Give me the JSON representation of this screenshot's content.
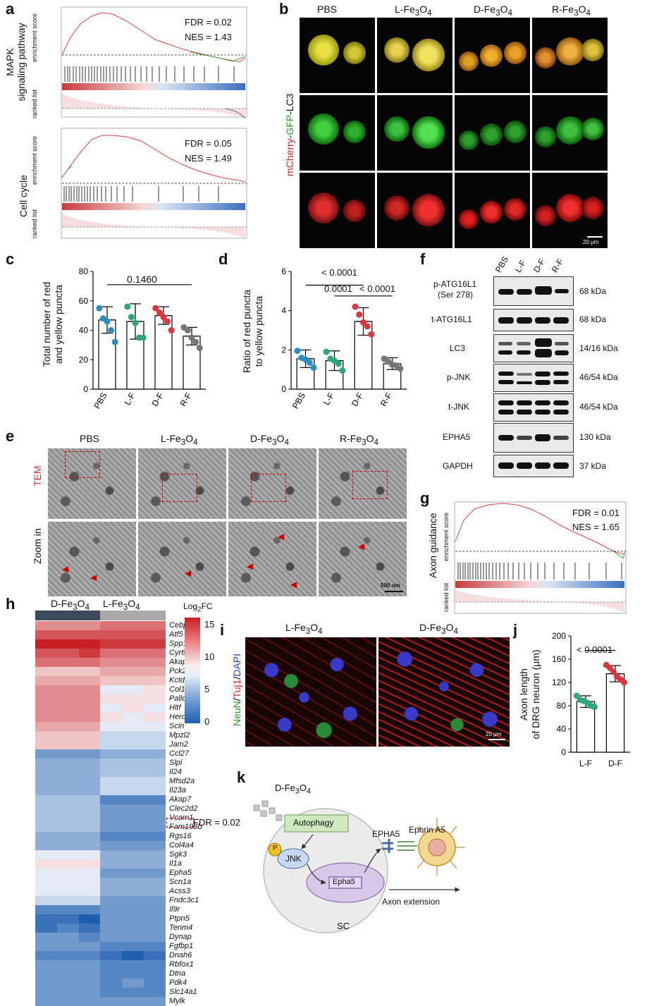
{
  "panels": {
    "a": {
      "letter": "a",
      "top": {
        "row_label": "MAPK\nsignaling pathway",
        "y_label": "enrichment score",
        "list_label": "ranked list",
        "fdr": "FDR = 0.02",
        "nes": "NES = 1.43"
      },
      "bottom": {
        "row_label": "Cell cycle",
        "y_label": "enrichment score",
        "list_label": "ranked list",
        "fdr": "FDR = 0.05",
        "nes": "NES = 1.49"
      }
    },
    "b": {
      "letter": "b",
      "columns": [
        "PBS",
        "L-Fe3O4",
        "D-Fe3O4",
        "R-Fe3O4"
      ],
      "row_label_parts": [
        "mCherry",
        "-",
        "GFP",
        "-LC3"
      ],
      "row_label_colors": [
        "#d42020",
        "#111111",
        "#22a022",
        "#111111"
      ],
      "scale_bar": "20 μm"
    },
    "c": {
      "letter": "c",
      "ylabel": "Total number of red\nand yellow puncta",
      "annotation": "0.1460",
      "chart_data": {
        "type": "bar",
        "categories": [
          "PBS",
          "L-F",
          "D-F",
          "R-F"
        ],
        "values": [
          47,
          46,
          50,
          36
        ],
        "errors": [
          9,
          12,
          6,
          6
        ],
        "points": [
          [
            55,
            48,
            46,
            40,
            32
          ],
          [
            56,
            49,
            45,
            35,
            35
          ],
          [
            55,
            52,
            49,
            46,
            40
          ],
          [
            42,
            40,
            35,
            32,
            28
          ]
        ],
        "ylim": [
          0,
          80
        ],
        "yticks": [
          0,
          20,
          40,
          60,
          80
        ],
        "colors": [
          "#2a8fbf",
          "#2fa67a",
          "#d9363e",
          "#777777"
        ]
      }
    },
    "d": {
      "letter": "d",
      "ylabel": "Ratio of red puncta\nto yellow puncta",
      "annotations": [
        "< 0.0001",
        "0.0001",
        "< 0.0001"
      ],
      "chart_data": {
        "type": "bar",
        "categories": [
          "PBS",
          "L-F",
          "D-F",
          "R-F"
        ],
        "values": [
          1.55,
          1.45,
          3.45,
          1.3
        ],
        "errors": [
          0.45,
          0.5,
          0.7,
          0.3
        ],
        "points": [
          [
            1.95,
            1.6,
            1.5,
            1.35,
            1.1
          ],
          [
            1.9,
            1.55,
            1.45,
            1.3,
            0.95
          ],
          [
            4.2,
            3.8,
            3.4,
            3.2,
            2.8
          ],
          [
            1.55,
            1.4,
            1.25,
            1.2,
            1.05
          ]
        ],
        "ylim": [
          0,
          6
        ],
        "yticks": [
          0,
          2,
          4,
          6
        ],
        "colors": [
          "#2a8fbf",
          "#2fa67a",
          "#d9363e",
          "#777777"
        ]
      }
    },
    "e": {
      "letter": "e",
      "columns": [
        "PBS",
        "L-Fe3O4",
        "D-Fe3O4",
        "R-Fe3O4"
      ],
      "rows": [
        "TEM",
        "Zoom in"
      ],
      "scale_bar": "500 nm"
    },
    "f": {
      "letter": "f",
      "lanes": [
        "PBS",
        "L-F",
        "D-F",
        "R-F"
      ],
      "blots": [
        {
          "name": "p-ATG16L1",
          "sub": "(Ser 278)",
          "kda": "68 kDa"
        },
        {
          "name": "t-ATG16L1",
          "sub": "",
          "kda": "68 kDa"
        },
        {
          "name": "LC3",
          "sub": "",
          "kda": "14/16 kDa"
        },
        {
          "name": "p-JNK",
          "sub": "",
          "kda": "46/54 kDa"
        },
        {
          "name": "t-JNK",
          "sub": "",
          "kda": "46/54 kDa"
        },
        {
          "name": "EPHA5",
          "sub": "",
          "kda": "130 kDa"
        },
        {
          "name": "GAPDH",
          "sub": "",
          "kda": "37 kDa"
        }
      ]
    },
    "g": {
      "letter": "g",
      "row_label": "Axon guidance",
      "y_label": "enrichment score",
      "list_label": "ranked list",
      "fdr": "FDR = 0.01",
      "nes": "NES = 1.65"
    },
    "h": {
      "letter": "h",
      "groups": [
        "D-Fe3O4",
        "L-Fe3O4"
      ],
      "legend_title": "Log2FC",
      "legend_ticks": [
        "15",
        "10",
        "5",
        "0"
      ],
      "fdr_label": "FDR = 0.02",
      "genes": [
        "Cebpb",
        "Atf5",
        "Spp1",
        "Cyr61",
        "Akap12",
        "Pck2",
        "Kctd15",
        "Col11a1",
        "Palld",
        "Hltf",
        "Herc3",
        "Scin",
        "Mpzl2",
        "Jam2",
        "Ccl27",
        "Slpi",
        "Il24",
        "Mfsd2a",
        "Il23a",
        "Akap7",
        "Clec2d2",
        "Vcam1",
        "Fam198b",
        "Rgs16",
        "Col4a4",
        "Sgk3",
        "Il1a",
        "Epha5",
        "Scn1a",
        "Acss3",
        "Fndc3c1",
        "Il9r",
        "Ptpn5",
        "Tenm4",
        "Dynap",
        "Fgfbp1",
        "Dnah6",
        "Rbfox1",
        "Dtna",
        "Pdk4",
        "Slc14a1",
        "Mylk"
      ],
      "levels": [
        [
          11,
          11,
          11,
          12,
          12,
          12
        ],
        [
          13,
          13,
          13,
          13,
          13,
          13
        ],
        [
          15,
          15,
          15,
          14,
          14,
          14
        ],
        [
          13,
          13,
          14,
          12,
          12,
          12
        ],
        [
          12,
          12,
          12,
          11,
          11,
          11
        ],
        [
          9,
          9,
          9,
          10,
          10,
          10
        ],
        [
          10,
          10,
          10,
          9,
          9,
          9
        ],
        [
          11,
          11,
          11,
          7,
          7,
          8
        ],
        [
          11,
          11,
          11,
          8,
          8,
          8
        ],
        [
          11,
          11,
          11,
          7,
          8,
          7
        ],
        [
          11,
          11,
          11,
          8,
          7,
          8
        ],
        [
          10,
          10,
          10,
          7,
          7,
          7
        ],
        [
          9,
          9,
          9,
          6,
          6,
          6
        ],
        [
          9,
          9,
          9,
          6,
          6,
          6
        ],
        [
          3,
          3,
          3,
          4,
          4,
          4
        ],
        [
          4,
          4,
          4,
          5,
          5,
          5
        ],
        [
          4,
          4,
          4,
          5,
          5,
          5
        ],
        [
          4,
          4,
          4,
          6,
          6,
          6
        ],
        [
          4,
          4,
          4,
          6,
          6,
          6
        ],
        [
          5,
          5,
          5,
          2,
          2,
          2
        ],
        [
          5,
          5,
          5,
          3,
          3,
          3
        ],
        [
          5,
          5,
          5,
          3,
          3,
          3
        ],
        [
          5,
          5,
          5,
          3,
          3,
          3
        ],
        [
          4,
          4,
          4,
          2,
          2,
          2
        ],
        [
          4,
          4,
          4,
          3,
          3,
          3
        ],
        [
          7,
          7,
          7,
          4,
          4,
          4
        ],
        [
          8,
          8,
          8,
          4,
          4,
          4
        ],
        [
          7,
          7,
          7,
          3,
          3,
          3
        ],
        [
          7,
          7,
          7,
          4,
          4,
          4
        ],
        [
          7,
          7,
          7,
          4,
          4,
          4
        ],
        [
          6,
          6,
          6,
          3,
          3,
          3
        ],
        [
          2,
          2,
          2,
          3,
          3,
          3
        ],
        [
          1,
          1,
          0,
          3,
          3,
          3
        ],
        [
          1,
          2,
          1,
          3,
          3,
          3
        ],
        [
          3,
          3,
          2,
          3,
          3,
          3
        ],
        [
          3,
          3,
          3,
          2,
          2,
          2
        ],
        [
          2,
          2,
          2,
          1,
          0,
          1
        ],
        [
          3,
          3,
          3,
          2,
          2,
          2
        ],
        [
          3,
          3,
          3,
          2,
          2,
          2
        ],
        [
          3,
          3,
          3,
          2,
          3,
          2
        ],
        [
          3,
          3,
          3,
          2,
          2,
          2
        ],
        [
          3,
          3,
          3,
          3,
          3,
          3
        ]
      ]
    },
    "i": {
      "letter": "i",
      "columns": [
        "L-Fe3O4",
        "D-Fe3O4"
      ],
      "row_label_parts": [
        "NeuN",
        "/",
        "Tuj1",
        "/",
        "DAPI"
      ],
      "row_label_colors": [
        "#22a022",
        "#111111",
        "#d42020",
        "#111111",
        "#2a3fbf"
      ],
      "scale_bar": "20 μm"
    },
    "j": {
      "letter": "j",
      "ylabel": "Axon length\nof DRG neuron (μm)",
      "annotation": "< 0.0001",
      "chart_data": {
        "type": "bar",
        "categories": [
          "L-F",
          "D-F"
        ],
        "values": [
          87,
          135
        ],
        "errors": [
          10,
          14
        ],
        "points": [
          [
            97,
            90,
            88,
            85,
            80,
            78
          ],
          [
            150,
            145,
            138,
            130,
            125,
            120
          ]
        ],
        "ylim": [
          0,
          200
        ],
        "yticks": [
          0,
          40,
          80,
          120,
          160,
          200
        ],
        "colors": [
          "#2fa67a",
          "#d9363e"
        ]
      }
    },
    "k": {
      "letter": "k",
      "particle_label": "D-Fe3O4",
      "labels": {
        "autophagy": "Autophagy",
        "jnk": "JNK",
        "p": "P",
        "epha5_gene": "Epha5",
        "epha5_receptor": "EPHA5",
        "ephrin": "Ephrin A5",
        "sc": "SC",
        "axon": "Axon extension"
      }
    }
  }
}
